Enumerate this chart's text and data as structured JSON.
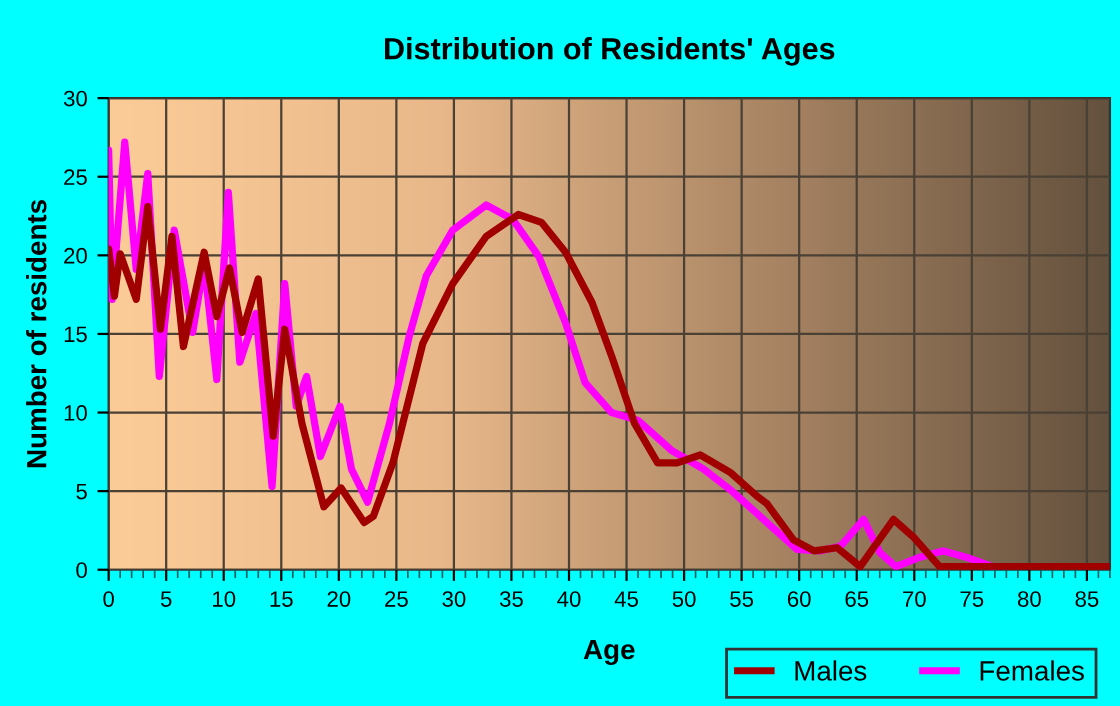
{
  "chart_data": {
    "type": "line",
    "title": "Distribution of Residents' Ages",
    "xlabel": "Age",
    "ylabel": "Number of residents",
    "xlim": [
      0,
      87
    ],
    "xticks": [
      0,
      5,
      10,
      15,
      20,
      25,
      30,
      35,
      40,
      45,
      50,
      55,
      60,
      65,
      70,
      75,
      80,
      85
    ],
    "ylim": [
      0,
      30
    ],
    "yticks": [
      0,
      5,
      10,
      15,
      20,
      25,
      30
    ],
    "grid": true,
    "legend": "bottom right",
    "marker": "none",
    "line_style": "solid",
    "series": [
      {
        "name": "Males",
        "color": "#a00000",
        "x": [
          0,
          0.5,
          1,
          2.4,
          3.4,
          4.5,
          5.5,
          6.5,
          8.3,
          9.4,
          10.5,
          11.6,
          13,
          14.3,
          15.3,
          16.8,
          18.7,
          20.2,
          22.2,
          23,
          24.7,
          27.3,
          29.9,
          32.8,
          35.6,
          37.6,
          39.7,
          42,
          43.7,
          45.7,
          47.7,
          49.4,
          51.4,
          54,
          56.3,
          57.2,
          59.5,
          61.3,
          63.3,
          65.3,
          68.2,
          69.9,
          72.2,
          74,
          80,
          87
        ],
        "values": [
          20.4,
          17.4,
          20.1,
          17.2,
          23.1,
          15.3,
          21.2,
          14.2,
          20.2,
          16.1,
          19.2,
          15.1,
          18.5,
          8.5,
          15.3,
          9.3,
          4,
          5.2,
          3,
          3.4,
          6.8,
          14.4,
          18.2,
          21.2,
          22.6,
          22.1,
          20.2,
          17,
          13.6,
          9.3,
          6.8,
          6.8,
          7.3,
          6.2,
          4.7,
          4.2,
          1.9,
          1.2,
          1.4,
          0.2,
          3.2,
          2.1,
          0.2,
          0.2,
          0.2,
          0.2
        ]
      },
      {
        "name": "Females",
        "color": "#ff00ff",
        "x": [
          0,
          0.3,
          1.4,
          2.4,
          3.4,
          4.4,
          5.7,
          7.3,
          8.3,
          9.4,
          10.4,
          11.4,
          12.8,
          14.2,
          15.3,
          16.3,
          17.2,
          18.4,
          20.1,
          21.1,
          22.5,
          24.4,
          26.1,
          27.6,
          29.9,
          32.8,
          35.1,
          37.4,
          39.7,
          41.4,
          43.7,
          46,
          48.9,
          51.7,
          54,
          56.3,
          57.2,
          59.8,
          61.8,
          63.6,
          65.6,
          67,
          68.4,
          70.5,
          72.5,
          74.5,
          76.8
        ],
        "values": [
          26.7,
          17.2,
          27.2,
          19.1,
          25.2,
          12.3,
          21.6,
          15.1,
          19.5,
          12.1,
          24,
          13.2,
          16.3,
          5.3,
          18.2,
          10.4,
          12.3,
          7.2,
          10.4,
          6.4,
          4.3,
          9.3,
          14.8,
          18.7,
          21.6,
          23.2,
          22.3,
          19.9,
          15.7,
          11.9,
          10,
          9.5,
          7.6,
          6.4,
          5.1,
          3.6,
          3,
          1.3,
          1.2,
          1.5,
          3.2,
          1.1,
          0.2,
          0.8,
          1.2,
          0.8,
          0.2
        ]
      }
    ]
  }
}
